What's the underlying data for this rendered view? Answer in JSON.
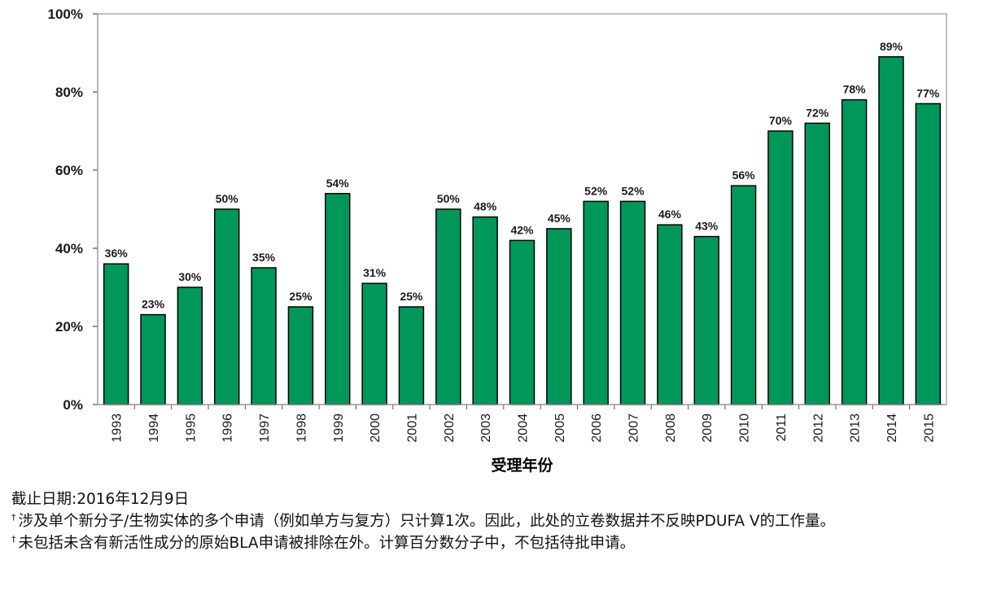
{
  "chart_data": {
    "type": "bar",
    "categories": [
      "1993",
      "1994",
      "1995",
      "1996",
      "1997",
      "1998",
      "1999",
      "2000",
      "2001",
      "2002",
      "2003",
      "2004",
      "2005",
      "2006",
      "2007",
      "2008",
      "2009",
      "2010",
      "2011",
      "2012",
      "2013",
      "2014",
      "2015"
    ],
    "values": [
      36,
      23,
      30,
      50,
      35,
      25,
      54,
      31,
      25,
      50,
      48,
      42,
      45,
      52,
      52,
      46,
      43,
      56,
      70,
      72,
      78,
      89,
      77
    ],
    "data_labels": [
      "36%",
      "23%",
      "30%",
      "50%",
      "35%",
      "25%",
      "54%",
      "31%",
      "25%",
      "50%",
      "48%",
      "42%",
      "45%",
      "52%",
      "52%",
      "46%",
      "43%",
      "56%",
      "70%",
      "72%",
      "78%",
      "89%",
      "77%"
    ],
    "y_ticks": [
      0,
      20,
      40,
      60,
      80,
      100
    ],
    "y_tick_labels": [
      "0%",
      "20%",
      "40%",
      "60%",
      "80%",
      "100%"
    ],
    "ylim": [
      0,
      100
    ],
    "xlabel": "受理年份",
    "ylabel": "",
    "title": "",
    "bar_color": "#00975a",
    "bar_edge_color": "#000000",
    "grid": false,
    "legend": "none"
  },
  "notes": {
    "cutoff": "截止日期:2016年12月9日",
    "dagger": "†",
    "note1": "涉及单个新分子/生物实体的多个申请（例如单方与复方）只计算1次。因此，此处的立卷数据并不反映PDUFA V的工作量。",
    "note2": "未包括未含有新活性成分的原始BLA申请被排除在外。计算百分数分子中，不包括待批申请。"
  }
}
